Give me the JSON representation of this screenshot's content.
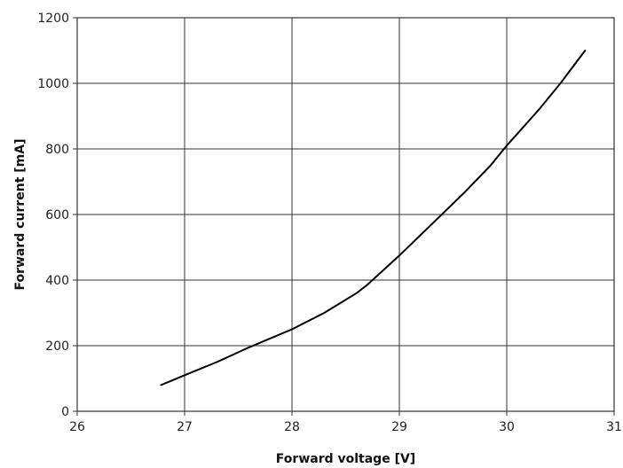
{
  "chart_data": {
    "type": "line",
    "title": "",
    "xlabel": "Forward voltage [V]",
    "ylabel": "Forward current [mA]",
    "xlim": [
      26,
      31
    ],
    "ylim": [
      0,
      1200
    ],
    "x_ticks": [
      26,
      27,
      28,
      29,
      30,
      31
    ],
    "y_ticks": [
      0,
      200,
      400,
      600,
      800,
      1000,
      1200
    ],
    "grid": true,
    "line_color": "#000000",
    "series": [
      {
        "x": [
          26.78,
          27.0,
          27.3,
          27.6,
          28.0,
          28.3,
          28.6,
          28.7,
          29.0,
          29.3,
          29.6,
          29.85,
          30.0,
          30.3,
          30.5,
          30.73
        ],
        "y": [
          80,
          110,
          150,
          195,
          250,
          300,
          360,
          385,
          475,
          570,
          665,
          750,
          810,
          920,
          1000,
          1100
        ]
      }
    ]
  }
}
